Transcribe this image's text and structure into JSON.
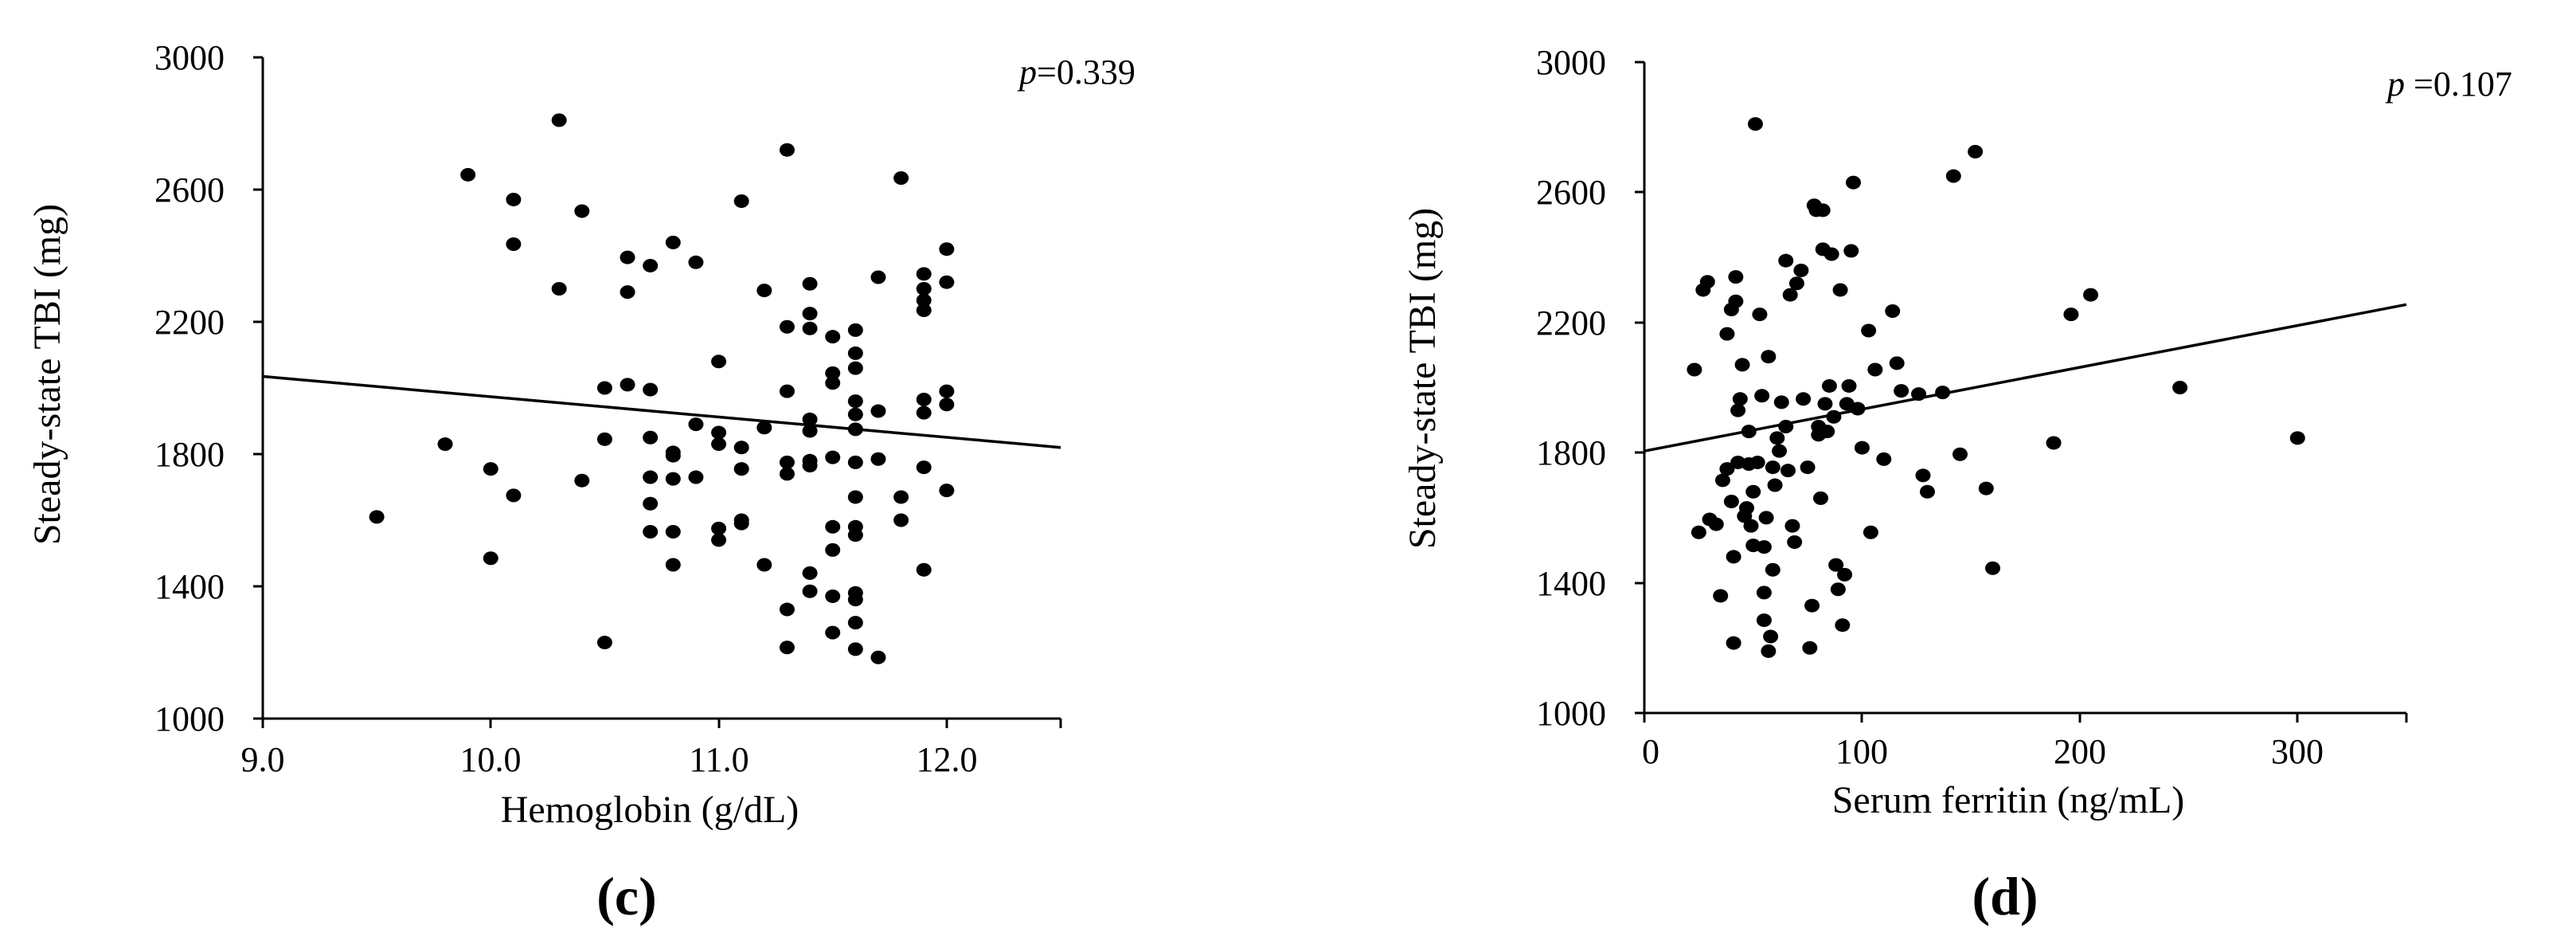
{
  "chart_data": [
    {
      "type": "scatter",
      "panel_label": "(c)",
      "p_value_symbol": "p",
      "p_value_text": "=0.339",
      "xlabel": "Hemoglobin (g/dL)",
      "ylabel": "Steady-state TBI (mg)",
      "xlim": [
        9.0,
        12.5
      ],
      "ylim": [
        1000,
        3000
      ],
      "x_ticks": [
        "9.0",
        "10.0",
        "11.0",
        "12.0"
      ],
      "y_ticks": [
        "1000",
        "1400",
        "1800",
        "2200",
        "2600",
        "3000"
      ],
      "grid": false,
      "trend_line": {
        "x": [
          9.0,
          12.5
        ],
        "y": [
          2035,
          1820
        ]
      },
      "points": {
        "x": [
          9.5,
          9.8,
          9.9,
          10.0,
          10.0,
          10.1,
          10.1,
          10.1,
          10.3,
          10.3,
          10.4,
          10.4,
          10.5,
          10.5,
          10.5,
          10.6,
          10.6,
          10.6,
          10.7,
          10.7,
          10.7,
          10.7,
          10.7,
          10.7,
          10.8,
          10.8,
          10.8,
          10.8,
          10.8,
          10.8,
          10.9,
          10.9,
          10.9,
          11.0,
          11.0,
          11.0,
          11.0,
          11.0,
          11.1,
          11.1,
          11.1,
          11.1,
          11.1,
          11.2,
          11.2,
          11.2,
          11.3,
          11.3,
          11.3,
          11.3,
          11.3,
          11.3,
          11.3,
          11.4,
          11.4,
          11.4,
          11.4,
          11.4,
          11.4,
          11.4,
          11.4,
          11.4,
          11.5,
          11.5,
          11.5,
          11.5,
          11.5,
          11.5,
          11.5,
          11.5,
          11.6,
          11.6,
          11.6,
          11.6,
          11.6,
          11.6,
          11.6,
          11.6,
          11.6,
          11.6,
          11.6,
          11.6,
          11.6,
          11.6,
          11.7,
          11.7,
          11.7,
          11.7,
          11.8,
          11.8,
          11.8,
          11.9,
          11.9,
          11.9,
          11.9,
          11.9,
          11.9,
          11.9,
          11.9,
          12.0,
          12.0,
          12.0,
          12.0,
          12.0
        ],
        "y": [
          1610,
          1830,
          2645,
          1755,
          1485,
          2570,
          2435,
          1675,
          2810,
          2300,
          2535,
          1720,
          2000,
          1845,
          1230,
          2395,
          2290,
          2010,
          2370,
          1995,
          1850,
          1730,
          1650,
          1565,
          2440,
          1805,
          1795,
          1725,
          1465,
          1565,
          2380,
          1890,
          1730,
          2080,
          1865,
          1575,
          1540,
          1830,
          2565,
          1820,
          1755,
          1600,
          1590,
          2295,
          1880,
          1465,
          2720,
          2185,
          1990,
          1775,
          1740,
          1330,
          1215,
          2315,
          2225,
          2180,
          1905,
          1870,
          1780,
          1765,
          1440,
          1385,
          2155,
          2045,
          2015,
          1790,
          1580,
          1370,
          1260,
          1510,
          2175,
          2105,
          2060,
          1960,
          1875,
          1775,
          1670,
          1580,
          1555,
          1380,
          1360,
          1290,
          1210,
          1920,
          2335,
          1930,
          1785,
          1185,
          2635,
          1670,
          1600,
          2345,
          2300,
          2265,
          2235,
          1965,
          1925,
          1760,
          1450,
          2420,
          2320,
          1990,
          1950,
          1690
        ]
      }
    },
    {
      "type": "scatter",
      "panel_label": "(d)",
      "p_value_symbol": "p",
      "p_value_text": " =0.107",
      "xlabel": "Serum ferritin (ng/mL)",
      "ylabel": "Steady-state TBI (mg)",
      "xlim": [
        0,
        350
      ],
      "ylim": [
        1000,
        3000
      ],
      "x_ticks": [
        "0",
        "100",
        "200",
        "300"
      ],
      "y_ticks": [
        "1000",
        "1400",
        "1800",
        "2200",
        "2600",
        "3000"
      ],
      "grid": false,
      "trend_line": {
        "x": [
          0,
          350
        ],
        "y": [
          1805,
          2255
        ]
      },
      "points": {
        "x": [
          23,
          25,
          27,
          29,
          30,
          33,
          35,
          36,
          38,
          38,
          40,
          40,
          41,
          41,
          42,
          42,
          43,
          43,
          44,
          45,
          46,
          47,
          48,
          48,
          49,
          50,
          50,
          51,
          52,
          53,
          54,
          55,
          55,
          55,
          56,
          57,
          57,
          58,
          59,
          59,
          60,
          61,
          62,
          63,
          65,
          65,
          66,
          67,
          68,
          69,
          70,
          72,
          73,
          75,
          76,
          77,
          78,
          79,
          80,
          80,
          81,
          82,
          82,
          83,
          84,
          85,
          86,
          87,
          88,
          89,
          90,
          91,
          92,
          93,
          94,
          95,
          96,
          98,
          100,
          103,
          104,
          106,
          110,
          114,
          116,
          118,
          126,
          128,
          130,
          137,
          142,
          145,
          152,
          157,
          160,
          188,
          196,
          205,
          246,
          300
        ],
        "y": [
          2055,
          1555,
          2300,
          2325,
          1595,
          1580,
          1360,
          1715,
          2165,
          1750,
          1650,
          2240,
          1215,
          1480,
          2340,
          2265,
          1770,
          1930,
          1965,
          2070,
          1605,
          1630,
          1865,
          1765,
          1575,
          1680,
          1515,
          2810,
          1770,
          2225,
          1975,
          1510,
          1370,
          1285,
          1600,
          1190,
          2095,
          1235,
          1755,
          1440,
          1700,
          1845,
          1805,
          1955,
          2390,
          1880,
          1745,
          2285,
          1575,
          1525,
          2320,
          2360,
          1965,
          1755,
          1200,
          1330,
          2560,
          2545,
          1855,
          1880,
          1660,
          2545,
          2425,
          1950,
          1865,
          2005,
          2410,
          1910,
          1455,
          1380,
          2300,
          1270,
          1425,
          1950,
          2005,
          2420,
          2630,
          1935,
          1815,
          2175,
          1555,
          2055,
          1780,
          2235,
          2075,
          1990,
          1980,
          1730,
          1680,
          1985,
          2650,
          1795,
          2725,
          1690,
          1445,
          1830,
          2225,
          2285,
          2000,
          1845
        ]
      }
    }
  ]
}
